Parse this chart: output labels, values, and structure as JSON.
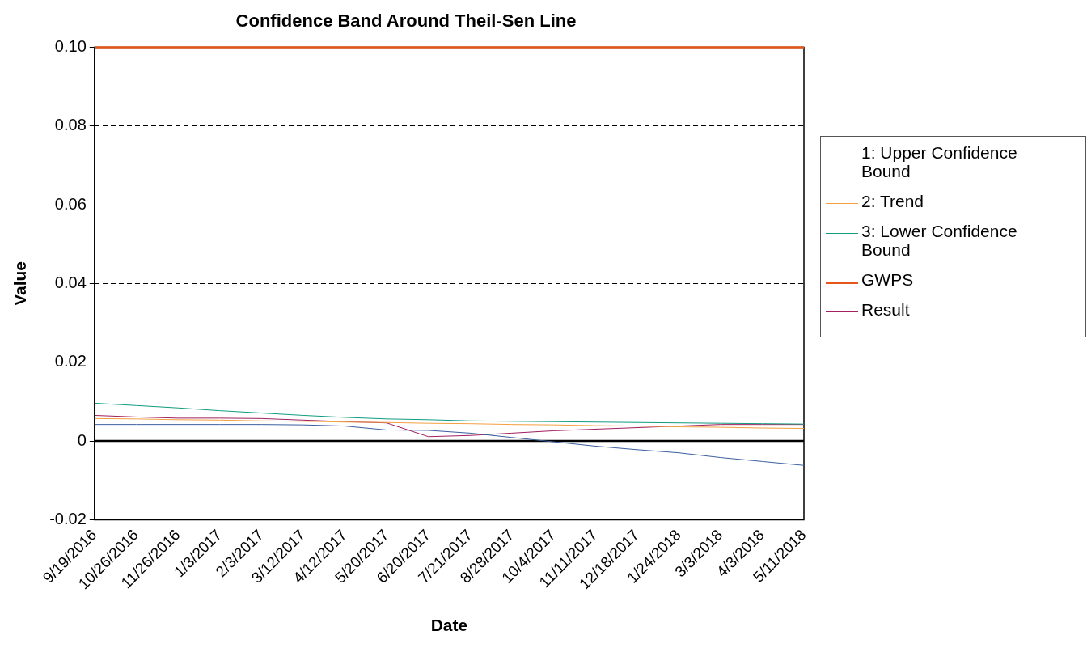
{
  "chart_data": {
    "type": "line",
    "title": "Confidence Band Around Theil-Sen Line",
    "xlabel": "Date",
    "ylabel": "Value",
    "categories": [
      "9/19/2016",
      "10/26/2016",
      "11/26/2016",
      "1/3/2017",
      "2/3/2017",
      "3/12/2017",
      "4/12/2017",
      "5/20/2017",
      "6/20/2017",
      "7/21/2017",
      "8/28/2017",
      "10/4/2017",
      "11/11/2017",
      "12/18/2017",
      "1/24/2018",
      "3/3/2018",
      "4/3/2018",
      "5/11/2018"
    ],
    "series": [
      {
        "name": "1: Upper Confidence Bound",
        "color": "#3a5fa0",
        "values": [
          0.0042,
          0.0042,
          0.0042,
          0.0042,
          0.0042,
          0.0041,
          0.0038,
          0.0028,
          0.0027,
          0.002,
          0.0009,
          -0.0002,
          -0.0013,
          -0.0022,
          -0.003,
          -0.0042,
          -0.0052,
          -0.0062
        ]
      },
      {
        "name": "2: Trend",
        "color": "#f4a040",
        "values": [
          0.0057,
          0.0056,
          0.0054,
          0.0053,
          0.0051,
          0.005,
          0.0048,
          0.0047,
          0.0045,
          0.0044,
          0.0042,
          0.0041,
          0.0039,
          0.0038,
          0.0036,
          0.0035,
          0.0033,
          0.0032
        ]
      },
      {
        "name": "3: Lower Confidence Bound",
        "color": "#109c80",
        "values": [
          0.0096,
          0.009,
          0.0084,
          0.0077,
          0.0071,
          0.0065,
          0.006,
          0.0056,
          0.0054,
          0.0051,
          0.005,
          0.0049,
          0.0048,
          0.0047,
          0.0046,
          0.0045,
          0.0044,
          0.0043
        ]
      },
      {
        "name": "GWPS",
        "color": "#e4561a",
        "values": [
          0.1,
          0.1,
          0.1,
          0.1,
          0.1,
          0.1,
          0.1,
          0.1,
          0.1,
          0.1,
          0.1,
          0.1,
          0.1,
          0.1,
          0.1,
          0.1,
          0.1,
          0.1
        ]
      },
      {
        "name": "Result",
        "color": "#a02060",
        "values": [
          0.0065,
          0.0061,
          0.0058,
          0.0058,
          0.0057,
          0.0053,
          0.0049,
          0.0046,
          0.0011,
          0.0014,
          0.002,
          0.0026,
          0.003,
          0.0034,
          0.0038,
          0.0042,
          0.0042,
          0.0042
        ]
      }
    ],
    "ylim": [
      -0.02,
      0.1
    ],
    "yticks": [
      -0.02,
      0,
      0.02,
      0.04,
      0.06,
      0.08,
      {
        "value": 0.1,
        "label": "0.10"
      }
    ],
    "ref_lines": [
      {
        "axis": "y",
        "value": 0,
        "color": "#000000"
      }
    ],
    "grid": "y",
    "legend": "right",
    "marker": "none",
    "line_style": "solid"
  }
}
